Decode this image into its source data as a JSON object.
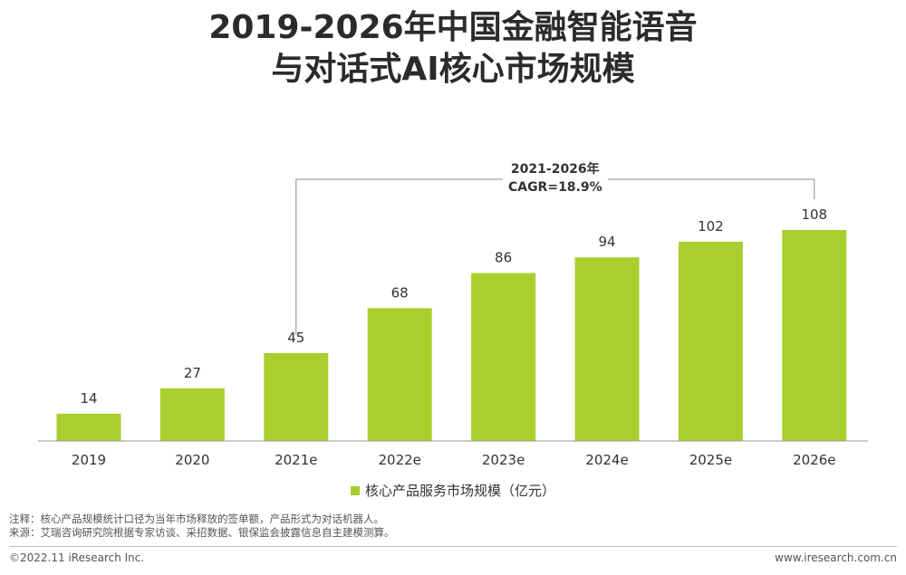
{
  "title": {
    "line1": "2019-2026年中国金融智能语音",
    "line2": "与对话式AI核心市场规模"
  },
  "annotation": {
    "line1": "2021-2026年",
    "line2": "CAGR=18.9%"
  },
  "legend": {
    "label": "核心产品服务市场规模（亿元）",
    "color": "#a9cf2f"
  },
  "notes": [
    "注释：核心产品规模统计口径为当年市场释放的签单额，产品形式为对话机器人。",
    "来源：艾瑞咨询研究院根据专家访谈、采招数据、银保监会披露信息自主建模测算。"
  ],
  "footer": {
    "left": "©2022.11 iResearch Inc.",
    "right": "www.iresearch.com.cn"
  },
  "chart_data": {
    "type": "bar",
    "categories": [
      "2019",
      "2020",
      "2021e",
      "2022e",
      "2023e",
      "2024e",
      "2025e",
      "2026e"
    ],
    "series": [
      {
        "name": "核心产品服务市场规模（亿元）",
        "values": [
          14,
          27,
          45,
          68,
          86,
          94,
          102,
          108
        ]
      }
    ],
    "title": "2019-2026年中国金融智能语音与对话式AI核心市场规模",
    "xlabel": "",
    "ylabel": "",
    "ylim": [
      0,
      108
    ],
    "grid": false,
    "legend_position": "bottom",
    "bar_color": "#a9cf2f",
    "cagr_span": [
      "2021e",
      "2026e"
    ]
  }
}
